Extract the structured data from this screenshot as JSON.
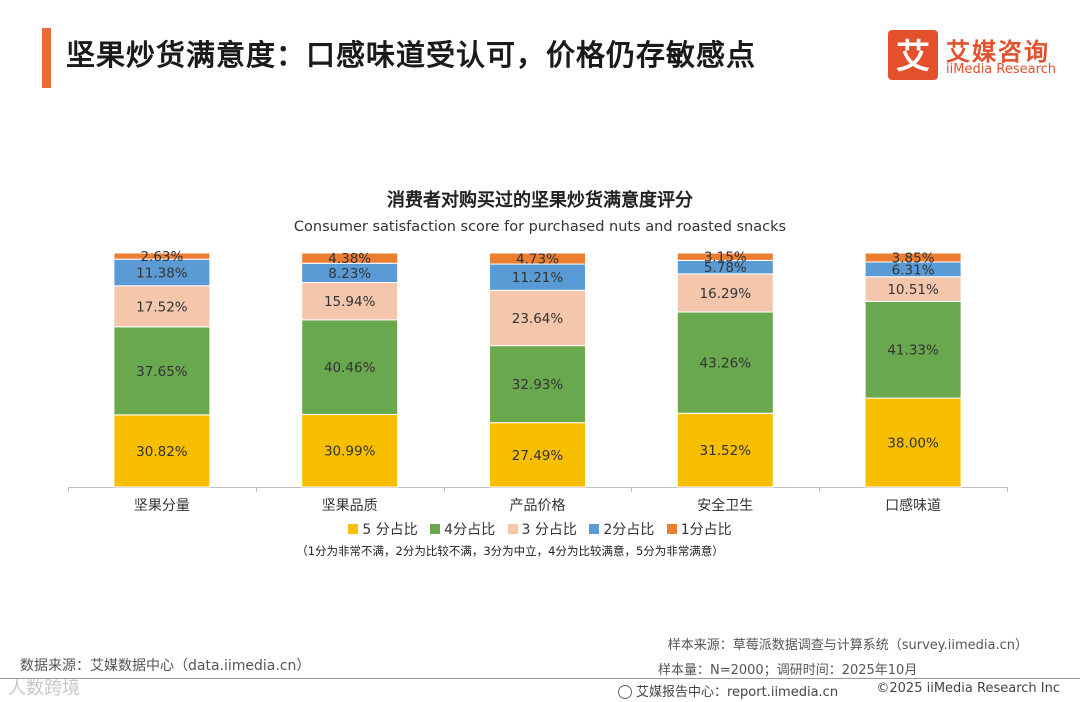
{
  "header": {
    "title": "坚果炒货满意度：口感味道受认可，价格仍存敏感点",
    "accent_color": "#ec6a3a"
  },
  "logo": {
    "cn": "艾媒咨询",
    "en": "iiMedia Research",
    "glyph": "艾",
    "color": "#e4502c"
  },
  "chart_data": {
    "type": "stacked-bar",
    "title": "消费者对购买过的坚果炒货满意度评分",
    "subtitle": "Consumer satisfaction score for purchased nuts and roasted snacks",
    "categories": [
      "坚果分量",
      "坚果品质",
      "产品价格",
      "安全卫生",
      "口感味道"
    ],
    "series": [
      {
        "name": "5 分占比",
        "color": "#f7bf00",
        "values": [
          30.82,
          30.99,
          27.49,
          31.52,
          38.0
        ],
        "labels": [
          "30.82%",
          "30.99%",
          "27.49%",
          "31.52%",
          "38.00%"
        ]
      },
      {
        "name": "4分占比",
        "color": "#6aa84f",
        "values": [
          37.65,
          40.46,
          32.93,
          43.26,
          41.33
        ],
        "labels": [
          "37.65%",
          "40.46%",
          "32.93%",
          "43.26%",
          "41.33%"
        ]
      },
      {
        "name": "3 分占比",
        "color": "#f4c7ad",
        "values": [
          17.52,
          15.94,
          23.64,
          16.29,
          10.51
        ],
        "labels": [
          "17.52%",
          "15.94%",
          "23.64%",
          "16.29%",
          "10.51%"
        ]
      },
      {
        "name": "2分占比",
        "color": "#5b9bd5",
        "values": [
          11.38,
          8.23,
          11.21,
          5.78,
          6.31
        ],
        "labels": [
          "11.38%",
          "8.23%",
          "11.21%",
          "5.78%",
          "6.31%"
        ]
      },
      {
        "name": "1分占比",
        "color": "#ed7d31",
        "values": [
          2.63,
          4.38,
          4.73,
          3.15,
          3.85
        ],
        "labels": [
          "2.63%",
          "4.38%",
          "4.73%",
          "3.15%",
          "3.85%"
        ]
      }
    ],
    "ylim": [
      0,
      100
    ],
    "stacked": true,
    "legend": "bottom",
    "note": "（1分为非常不满，2分为比较不满，3分为中立，4分为比较满意，5分为非常满意）"
  },
  "footer": {
    "source_left": "数据来源：艾媒数据中心（data.iimedia.cn）",
    "sample_source": "样本来源：草莓派数据调查与计算系统（survey.iimedia.cn）",
    "sample_size": "样本量：N=2000；调研时间：2025年10月",
    "report_center": "艾媒报告中心：report.iimedia.cn",
    "copyright": "©2025  iiMedia Research  Inc",
    "watermark": "人数跨境"
  }
}
